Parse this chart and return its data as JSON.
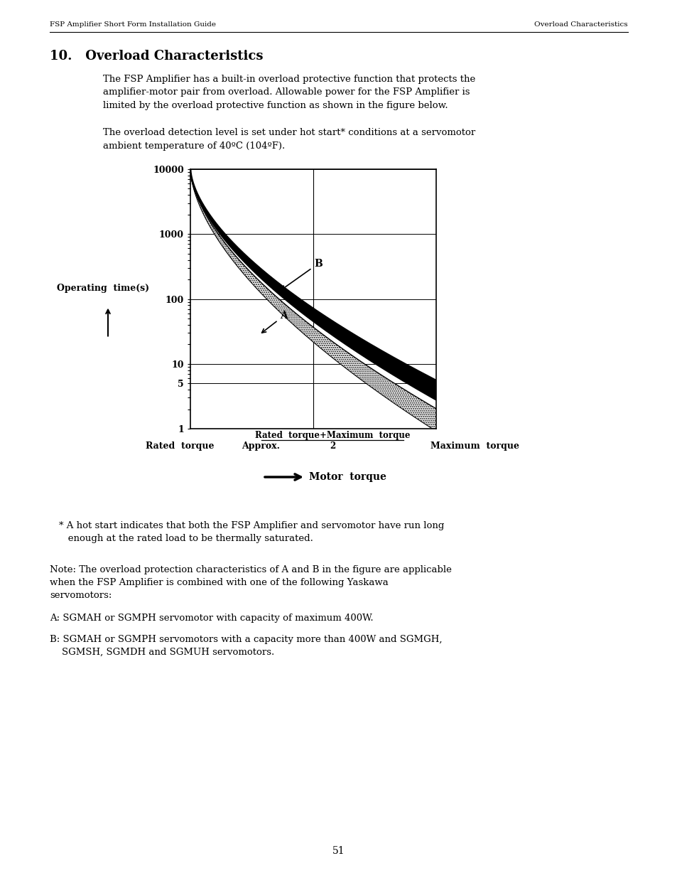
{
  "header_left": "FSP Amplifier Short Form Installation Guide",
  "header_right": "Overload Characteristics",
  "section_title": "10.   Overload Characteristics",
  "para1": "The FSP Amplifier has a built-in overload protective function that protects the\namplifier-motor pair from overload. Allowable power for the FSP Amplifier is\nlimited by the overload protective function as shown in the figure below.",
  "para2": "The overload detection level is set under hot start* conditions at a servomotor\nambient temperature of 40ºC (104ºF).",
  "footnote1": "* A hot start indicates that both the FSP Amplifier and servomotor have run long\n   enough at the rated load to be thermally saturated.",
  "note": "Note: The overload protection characteristics of A and B in the figure are applicable\nwhen the FSP Amplifier is combined with one of the following Yaskawa\nservomotors:",
  "note_A": "A: SGMAH or SGMPH servomotor with capacity of maximum 400W.",
  "note_B": "B: SGMAH or SGMPH servomotors with a capacity more than 400W and SGMGH,\n    SGMSH, SGMDH and SGMUH servomotors.",
  "page_number": "51",
  "background_color": "#ffffff",
  "text_color": "#000000"
}
